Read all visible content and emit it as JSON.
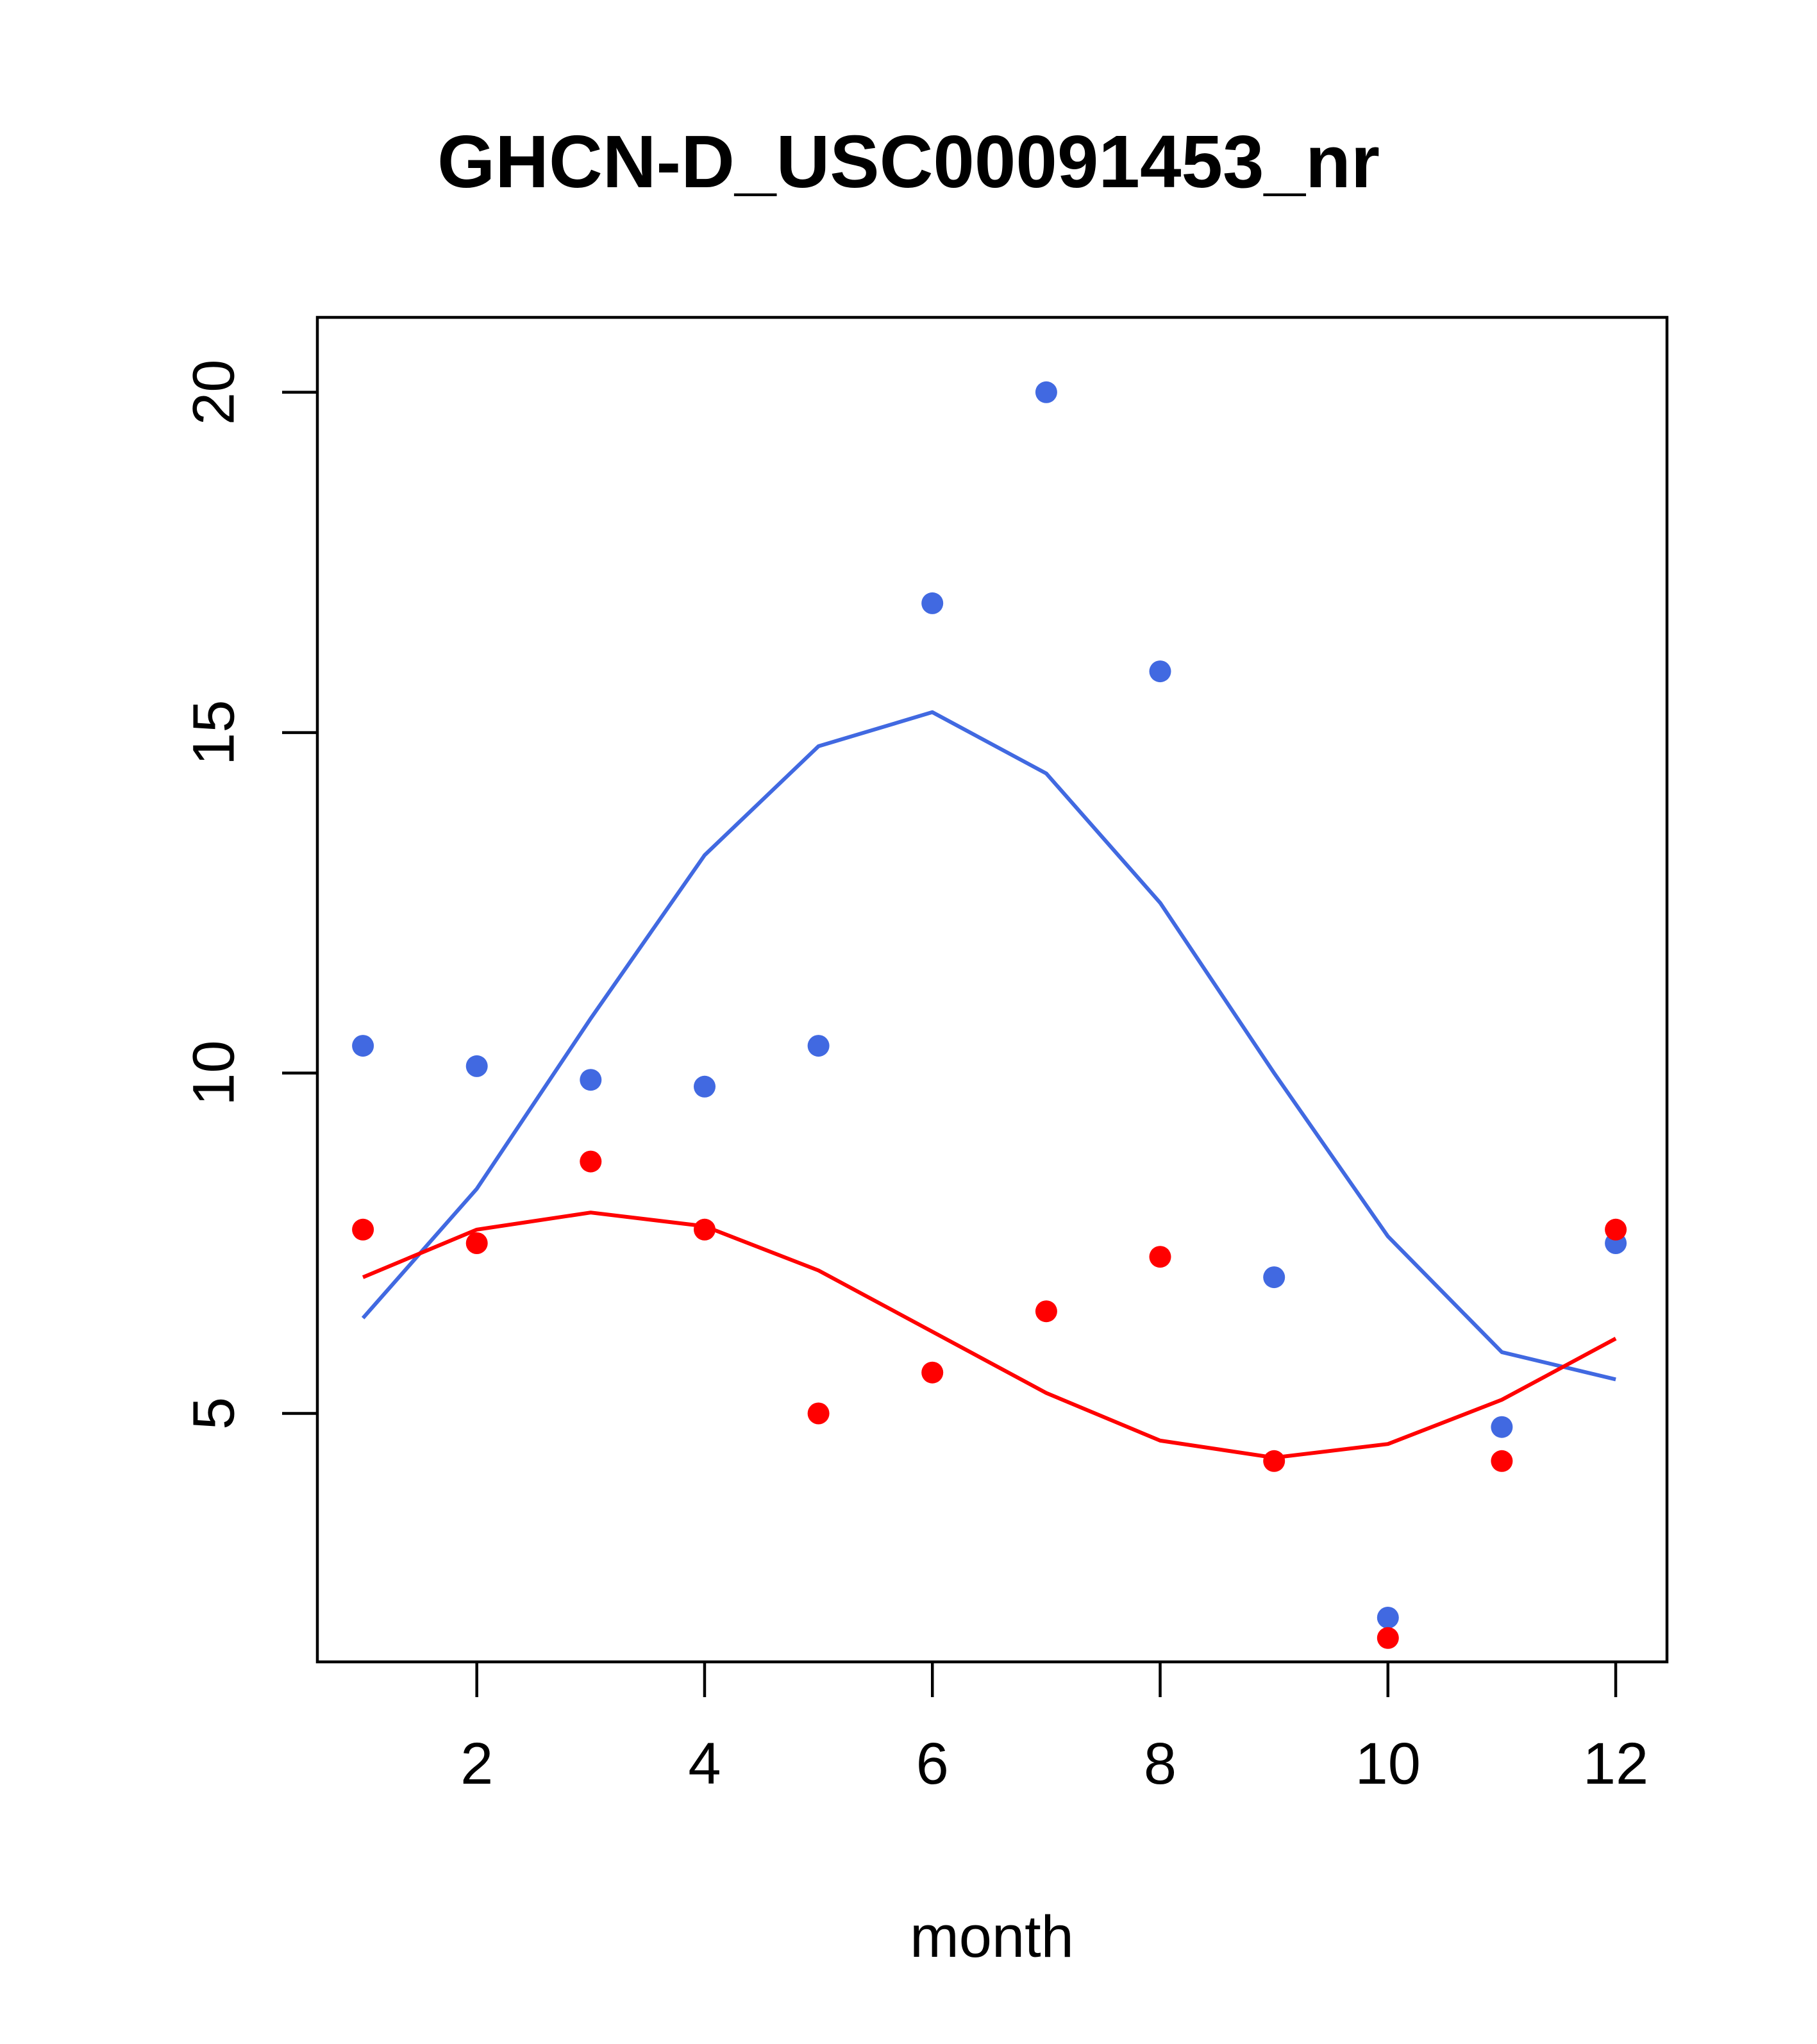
{
  "chart_data": {
    "type": "scatter",
    "title": "GHCN-D_USC00091453_nr",
    "xlabel": "month",
    "ylabel": "",
    "xlim": [
      0.6,
      12.45
    ],
    "ylim": [
      1.35,
      21.1
    ],
    "x_ticks": [
      2,
      4,
      6,
      8,
      10,
      12
    ],
    "y_ticks": [
      5,
      10,
      15,
      20
    ],
    "grid": false,
    "legend": "none",
    "series": [
      {
        "color": "#4169E1",
        "points": {
          "x": [
            1,
            2,
            3,
            4,
            5,
            6,
            7,
            8,
            9,
            10,
            11,
            12
          ],
          "y": [
            10.4,
            10.1,
            9.9,
            9.8,
            10.4,
            16.9,
            20.0,
            15.9,
            7.0,
            2.0,
            4.8,
            7.5
          ]
        },
        "smooth_line": {
          "x": [
            1,
            2,
            3,
            4,
            5,
            6,
            7,
            8,
            9,
            10,
            11,
            12
          ],
          "y": [
            6.4,
            8.3,
            10.8,
            13.2,
            14.8,
            15.3,
            14.4,
            12.5,
            10.0,
            7.6,
            5.9,
            5.5
          ]
        }
      },
      {
        "color": "#FF0000",
        "points": {
          "x": [
            1,
            2,
            3,
            4,
            5,
            6,
            7,
            8,
            9,
            10,
            11,
            12
          ],
          "y": [
            7.7,
            7.5,
            8.7,
            7.7,
            5.0,
            5.6,
            6.5,
            7.3,
            4.3,
            1.7,
            4.3,
            7.7
          ]
        },
        "smooth_line": {
          "x": [
            1,
            2,
            3,
            4,
            5,
            6,
            7,
            8,
            9,
            10,
            11,
            12
          ],
          "y": [
            7.0,
            7.7,
            7.95,
            7.75,
            7.1,
            6.2,
            5.3,
            4.6,
            4.35,
            4.55,
            5.2,
            6.1
          ]
        }
      }
    ]
  }
}
